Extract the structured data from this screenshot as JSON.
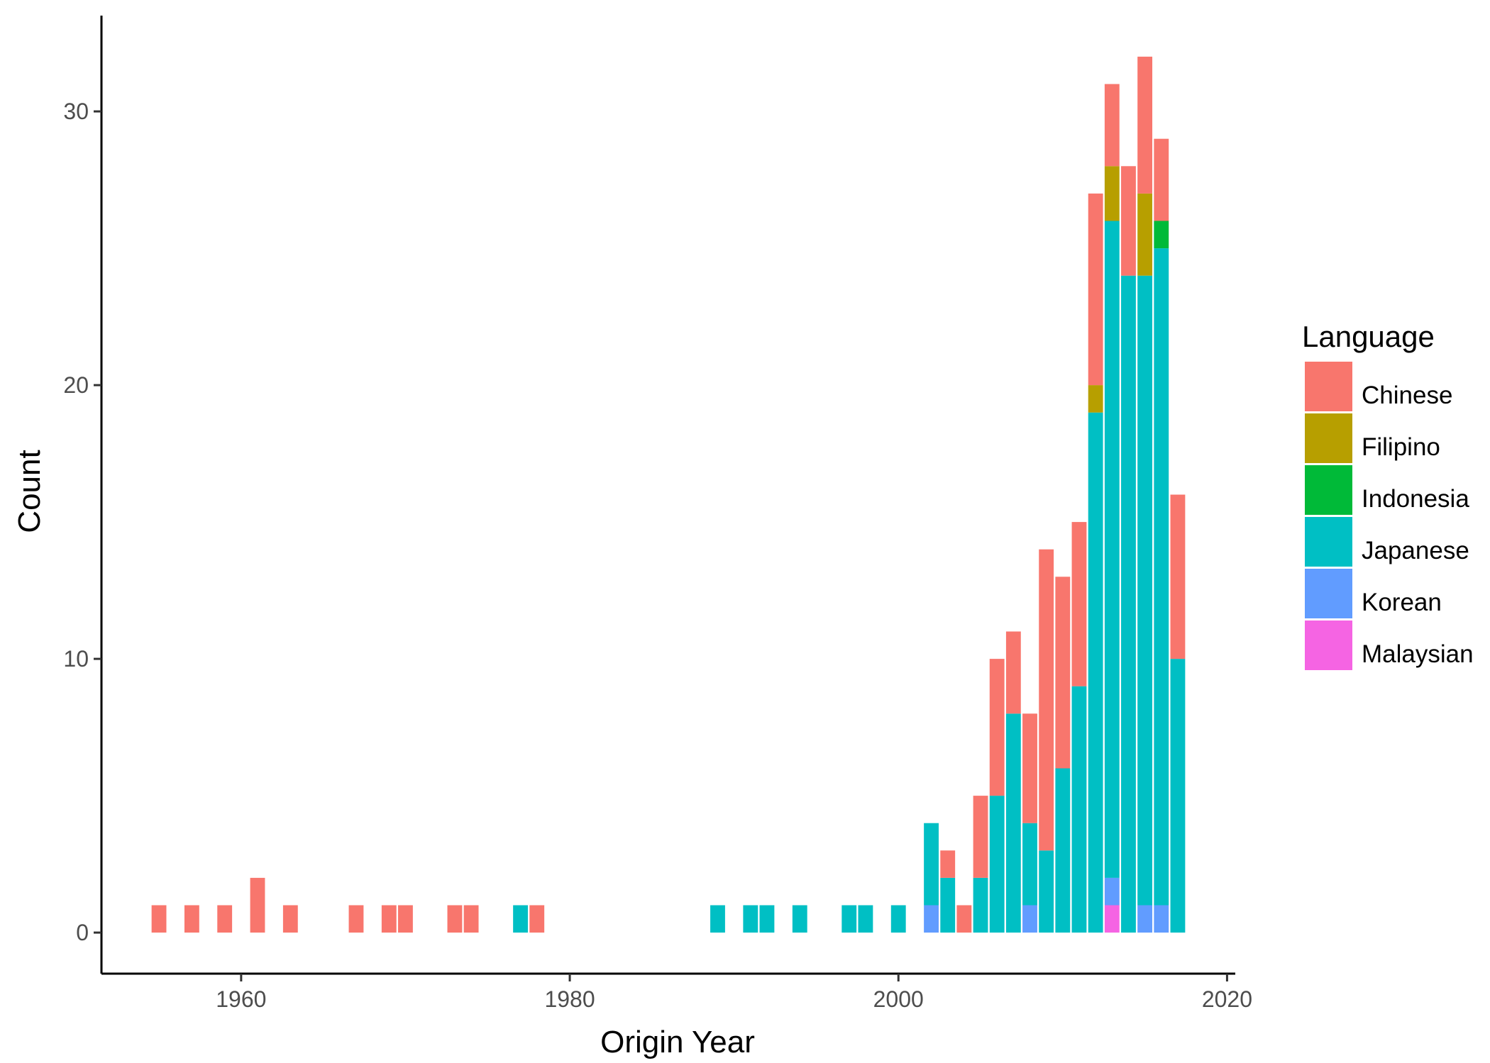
{
  "chart_data": {
    "type": "bar",
    "stacked": true,
    "xlabel": "Origin Year",
    "ylabel": "Count",
    "xlim": [
      1951.5,
      2020.5
    ],
    "ylim": [
      -1.5,
      33.5
    ],
    "x_ticks": [
      1960,
      1980,
      2000,
      2020
    ],
    "y_ticks": [
      0,
      10,
      20,
      30
    ],
    "legend": {
      "title": "Language",
      "position": "right",
      "entries": [
        {
          "name": "Chinese",
          "color": "#F8766D"
        },
        {
          "name": "Filipino",
          "color": "#B79F00"
        },
        {
          "name": "Indonesia",
          "color": "#00BA38"
        },
        {
          "name": "Japanese",
          "color": "#00BFC4"
        },
        {
          "name": "Korean",
          "color": "#619CFF"
        },
        {
          "name": "Malaysian",
          "color": "#F564E3"
        }
      ]
    },
    "stack_order_bottom_to_top": [
      "Malaysian",
      "Korean",
      "Japanese",
      "Indonesia",
      "Filipino",
      "Chinese"
    ],
    "bars": [
      {
        "year": 1955,
        "counts": {
          "Chinese": 1
        }
      },
      {
        "year": 1957,
        "counts": {
          "Chinese": 1
        }
      },
      {
        "year": 1959,
        "counts": {
          "Chinese": 1
        }
      },
      {
        "year": 1961,
        "counts": {
          "Chinese": 2
        }
      },
      {
        "year": 1963,
        "counts": {
          "Chinese": 1
        }
      },
      {
        "year": 1967,
        "counts": {
          "Chinese": 1
        }
      },
      {
        "year": 1969,
        "counts": {
          "Chinese": 1
        }
      },
      {
        "year": 1970,
        "counts": {
          "Chinese": 1
        }
      },
      {
        "year": 1973,
        "counts": {
          "Chinese": 1
        }
      },
      {
        "year": 1974,
        "counts": {
          "Chinese": 1
        }
      },
      {
        "year": 1977,
        "counts": {
          "Japanese": 1
        }
      },
      {
        "year": 1978,
        "counts": {
          "Chinese": 1
        }
      },
      {
        "year": 1989,
        "counts": {
          "Japanese": 1
        }
      },
      {
        "year": 1991,
        "counts": {
          "Japanese": 1
        }
      },
      {
        "year": 1992,
        "counts": {
          "Japanese": 1
        }
      },
      {
        "year": 1994,
        "counts": {
          "Japanese": 1
        }
      },
      {
        "year": 1997,
        "counts": {
          "Japanese": 1
        }
      },
      {
        "year": 1998,
        "counts": {
          "Japanese": 1
        }
      },
      {
        "year": 2000,
        "counts": {
          "Japanese": 1
        }
      },
      {
        "year": 2002,
        "counts": {
          "Korean": 1,
          "Japanese": 3
        }
      },
      {
        "year": 2003,
        "counts": {
          "Japanese": 2,
          "Chinese": 1
        }
      },
      {
        "year": 2004,
        "counts": {
          "Chinese": 1
        }
      },
      {
        "year": 2005,
        "counts": {
          "Japanese": 2,
          "Chinese": 3
        }
      },
      {
        "year": 2006,
        "counts": {
          "Japanese": 5,
          "Chinese": 5
        }
      },
      {
        "year": 2007,
        "counts": {
          "Japanese": 8,
          "Chinese": 3
        }
      },
      {
        "year": 2008,
        "counts": {
          "Korean": 1,
          "Japanese": 3,
          "Chinese": 4
        }
      },
      {
        "year": 2009,
        "counts": {
          "Japanese": 3,
          "Chinese": 11
        }
      },
      {
        "year": 2010,
        "counts": {
          "Japanese": 6,
          "Chinese": 7
        }
      },
      {
        "year": 2011,
        "counts": {
          "Japanese": 9,
          "Chinese": 6
        }
      },
      {
        "year": 2012,
        "counts": {
          "Japanese": 19,
          "Filipino": 1,
          "Chinese": 7
        }
      },
      {
        "year": 2013,
        "counts": {
          "Malaysian": 1,
          "Korean": 1,
          "Japanese": 24,
          "Filipino": 2,
          "Chinese": 3
        }
      },
      {
        "year": 2014,
        "counts": {
          "Japanese": 24,
          "Chinese": 4
        }
      },
      {
        "year": 2015,
        "counts": {
          "Korean": 1,
          "Japanese": 23,
          "Filipino": 3,
          "Chinese": 5
        }
      },
      {
        "year": 2016,
        "counts": {
          "Korean": 1,
          "Japanese": 24,
          "Indonesia": 1,
          "Chinese": 3
        }
      },
      {
        "year": 2017,
        "counts": {
          "Japanese": 10,
          "Chinese": 6
        }
      }
    ]
  }
}
